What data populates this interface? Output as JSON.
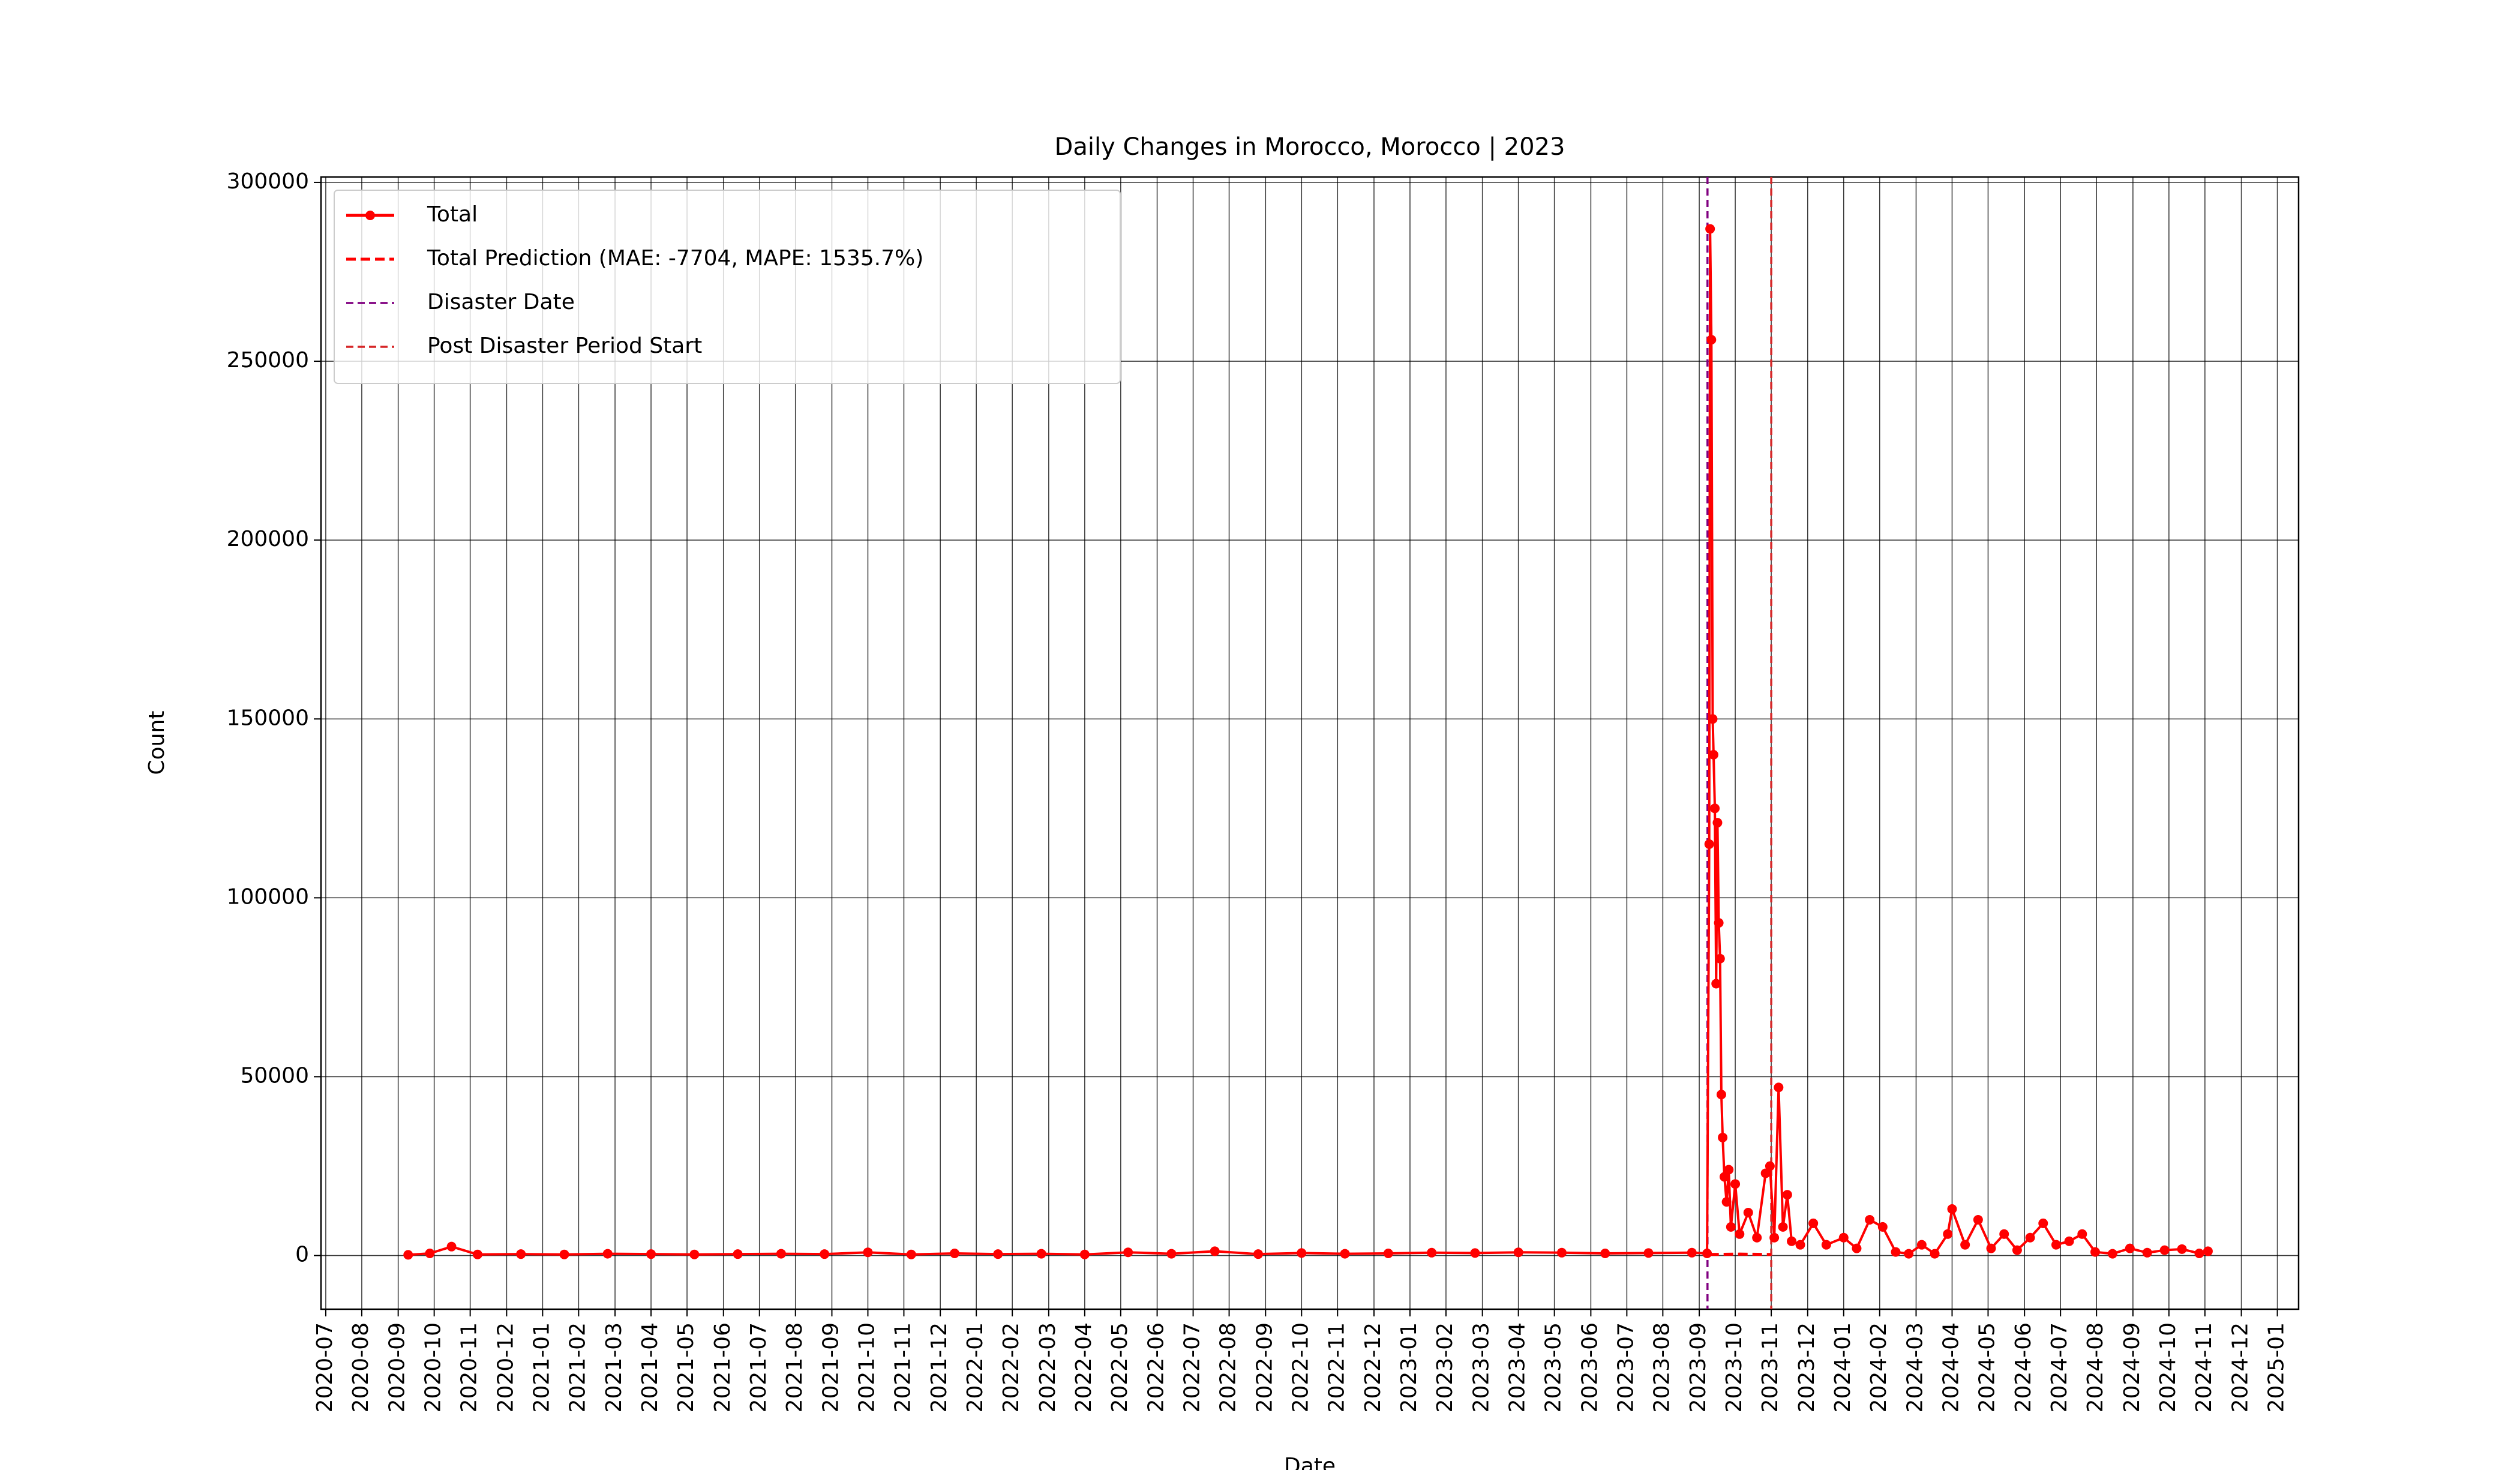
{
  "chart_data": {
    "type": "line",
    "title": "Daily Changes in Morocco, Morocco | 2023",
    "x_label": "Date",
    "y_label": "Count",
    "xlim": [
      2020.489,
      2025.049
    ],
    "ylim": [
      -15000,
      301500
    ],
    "yticks": [
      0,
      50000,
      100000,
      150000,
      200000,
      250000,
      300000
    ],
    "xticks": [
      {
        "value": 2020.5,
        "label": "2020-07"
      },
      {
        "value": 2020.583,
        "label": "2020-08"
      },
      {
        "value": 2020.667,
        "label": "2020-09"
      },
      {
        "value": 2020.75,
        "label": "2020-10"
      },
      {
        "value": 2020.833,
        "label": "2020-11"
      },
      {
        "value": 2020.917,
        "label": "2020-12"
      },
      {
        "value": 2021.0,
        "label": "2021-01"
      },
      {
        "value": 2021.083,
        "label": "2021-02"
      },
      {
        "value": 2021.167,
        "label": "2021-03"
      },
      {
        "value": 2021.25,
        "label": "2021-04"
      },
      {
        "value": 2021.333,
        "label": "2021-05"
      },
      {
        "value": 2021.417,
        "label": "2021-06"
      },
      {
        "value": 2021.5,
        "label": "2021-07"
      },
      {
        "value": 2021.583,
        "label": "2021-08"
      },
      {
        "value": 2021.667,
        "label": "2021-09"
      },
      {
        "value": 2021.75,
        "label": "2021-10"
      },
      {
        "value": 2021.833,
        "label": "2021-11"
      },
      {
        "value": 2021.917,
        "label": "2021-12"
      },
      {
        "value": 2022.0,
        "label": "2022-01"
      },
      {
        "value": 2022.083,
        "label": "2022-02"
      },
      {
        "value": 2022.167,
        "label": "2022-03"
      },
      {
        "value": 2022.25,
        "label": "2022-04"
      },
      {
        "value": 2022.333,
        "label": "2022-05"
      },
      {
        "value": 2022.417,
        "label": "2022-06"
      },
      {
        "value": 2022.5,
        "label": "2022-07"
      },
      {
        "value": 2022.583,
        "label": "2022-08"
      },
      {
        "value": 2022.667,
        "label": "2022-09"
      },
      {
        "value": 2022.75,
        "label": "2022-10"
      },
      {
        "value": 2022.833,
        "label": "2022-11"
      },
      {
        "value": 2022.917,
        "label": "2022-12"
      },
      {
        "value": 2023.0,
        "label": "2023-01"
      },
      {
        "value": 2023.083,
        "label": "2023-02"
      },
      {
        "value": 2023.167,
        "label": "2023-03"
      },
      {
        "value": 2023.25,
        "label": "2023-04"
      },
      {
        "value": 2023.333,
        "label": "2023-05"
      },
      {
        "value": 2023.417,
        "label": "2023-06"
      },
      {
        "value": 2023.5,
        "label": "2023-07"
      },
      {
        "value": 2023.583,
        "label": "2023-08"
      },
      {
        "value": 2023.667,
        "label": "2023-09"
      },
      {
        "value": 2023.75,
        "label": "2023-10"
      },
      {
        "value": 2023.833,
        "label": "2023-11"
      },
      {
        "value": 2023.917,
        "label": "2023-12"
      },
      {
        "value": 2024.0,
        "label": "2024-01"
      },
      {
        "value": 2024.083,
        "label": "2024-02"
      },
      {
        "value": 2024.167,
        "label": "2024-03"
      },
      {
        "value": 2024.25,
        "label": "2024-04"
      },
      {
        "value": 2024.333,
        "label": "2024-05"
      },
      {
        "value": 2024.417,
        "label": "2024-06"
      },
      {
        "value": 2024.5,
        "label": "2024-07"
      },
      {
        "value": 2024.583,
        "label": "2024-08"
      },
      {
        "value": 2024.667,
        "label": "2024-09"
      },
      {
        "value": 2024.75,
        "label": "2024-10"
      },
      {
        "value": 2024.833,
        "label": "2024-11"
      },
      {
        "value": 2024.917,
        "label": "2024-12"
      },
      {
        "value": 2025.0,
        "label": "2025-01"
      }
    ],
    "grid": true,
    "legend": "upper left",
    "series": [
      {
        "name": "Total",
        "color": "#ff0000",
        "style": "solid",
        "markers": true,
        "x": [
          2020.69,
          2020.74,
          2020.79,
          2020.85,
          2020.95,
          2021.05,
          2021.15,
          2021.25,
          2021.35,
          2021.45,
          2021.55,
          2021.65,
          2021.75,
          2021.85,
          2021.95,
          2022.05,
          2022.15,
          2022.25,
          2022.35,
          2022.45,
          2022.55,
          2022.65,
          2022.75,
          2022.85,
          2022.95,
          2023.05,
          2023.15,
          2023.25,
          2023.35,
          2023.45,
          2023.55,
          2023.65,
          2023.685,
          2023.69,
          2023.692,
          2023.695,
          2023.698,
          2023.7,
          2023.703,
          2023.706,
          2023.709,
          2023.712,
          2023.715,
          2023.718,
          2023.721,
          2023.725,
          2023.73,
          2023.735,
          2023.74,
          2023.75,
          2023.76,
          2023.78,
          2023.8,
          2023.82,
          2023.83,
          2023.84,
          2023.85,
          2023.86,
          2023.87,
          2023.88,
          2023.9,
          2023.93,
          2023.96,
          2024.0,
          2024.03,
          2024.06,
          2024.09,
          2024.12,
          2024.15,
          2024.18,
          2024.21,
          2024.24,
          2024.25,
          2024.28,
          2024.31,
          2024.34,
          2024.37,
          2024.4,
          2024.43,
          2024.46,
          2024.49,
          2024.52,
          2024.55,
          2024.58,
          2024.62,
          2024.66,
          2024.7,
          2024.74,
          2024.78,
          2024.82,
          2024.84
        ],
        "values": [
          200,
          600,
          2500,
          300,
          400,
          300,
          500,
          400,
          300,
          400,
          500,
          400,
          900,
          300,
          600,
          400,
          500,
          300,
          900,
          500,
          1200,
          400,
          700,
          500,
          600,
          800,
          700,
          900,
          800,
          600,
          700,
          800,
          600,
          115000,
          287000,
          256000,
          150000,
          140000,
          125000,
          76000,
          121000,
          93000,
          83000,
          45000,
          33000,
          22000,
          15000,
          24000,
          8000,
          20000,
          6000,
          12000,
          5000,
          23000,
          25000,
          5000,
          47000,
          8000,
          17000,
          4000,
          3000,
          9000,
          3000,
          5000,
          2000,
          10000,
          8000,
          1000,
          500,
          3000,
          500,
          6000,
          13000,
          3000,
          10000,
          2000,
          6000,
          1500,
          5000,
          9000,
          3000,
          4000,
          6000,
          1000,
          500,
          2000,
          800,
          1500,
          1800,
          600,
          1200
        ]
      },
      {
        "name": "Total Prediction (MAE: -7704, MAPE: 1535.7%)",
        "color": "#ff0000",
        "style": "dashed",
        "markers": false,
        "x": [
          2023.69,
          2023.76,
          2023.833
        ],
        "values": [
          300,
          400,
          300
        ]
      }
    ],
    "vlines": [
      {
        "name": "Disaster Date",
        "x": 2023.686,
        "color": "#800080"
      },
      {
        "name": "Post Disaster Period Start",
        "x": 2023.833,
        "color": "#d62728"
      }
    ]
  }
}
